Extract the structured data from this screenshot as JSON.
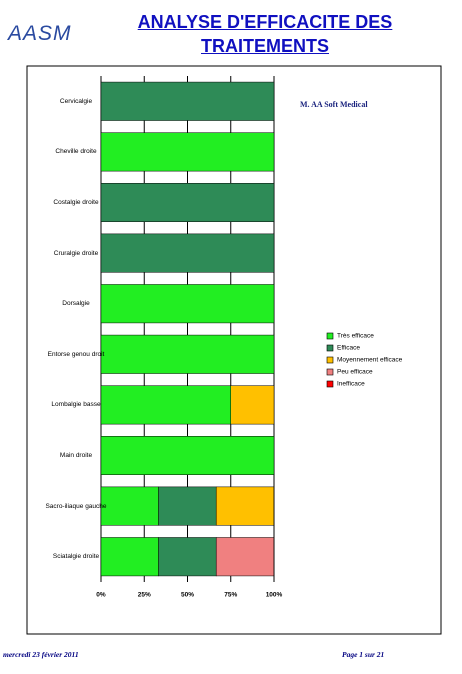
{
  "header": {
    "logo": "AASM"
  },
  "chart_data": {
    "type": "stacked-bar-horizontal",
    "title": "ANALYSE D'EFFICACITE DES TRAITEMENTS",
    "annotation": "M. AA Soft Medical",
    "categories": [
      "Cervicalgie",
      "Cheville droite",
      "Costalgie droite",
      "Cruralgie droite",
      "Dorsalgie",
      "Entorse genou droit",
      "Lombalgie basse",
      "Main droite",
      "Sacro-iliaque gauche",
      "Sciatalgie droite"
    ],
    "series": [
      {
        "name": "Très efficace",
        "color": "#22ee22",
        "values": [
          0,
          100,
          0,
          0,
          100,
          100,
          75,
          100,
          33.3,
          33.3
        ]
      },
      {
        "name": "Efficace",
        "color": "#2e8b57",
        "values": [
          100,
          0,
          100,
          100,
          0,
          0,
          0,
          0,
          33.3,
          33.3
        ]
      },
      {
        "name": "Moyennement efficace",
        "color": "#ffc000",
        "values": [
          0,
          0,
          0,
          0,
          0,
          0,
          25,
          0,
          33.3,
          0
        ]
      },
      {
        "name": "Peu efficace",
        "color": "#f08080",
        "values": [
          0,
          0,
          0,
          0,
          0,
          0,
          0,
          0,
          0,
          33.3
        ]
      },
      {
        "name": "Inefficace",
        "color": "#ff0000",
        "values": [
          0,
          0,
          0,
          0,
          0,
          0,
          0,
          0,
          0,
          0
        ]
      }
    ],
    "xlim": [
      0,
      100
    ],
    "xticks": [
      {
        "value": 0,
        "label": "0%"
      },
      {
        "value": 25,
        "label": "25%"
      },
      {
        "value": 50,
        "label": "50%"
      },
      {
        "value": 75,
        "label": "75%"
      },
      {
        "value": 100,
        "label": "100%"
      }
    ],
    "grid": true,
    "legend": "right"
  },
  "footer": {
    "date": "mercredi 23 février 2011",
    "page": "Page 1 sur 21"
  }
}
